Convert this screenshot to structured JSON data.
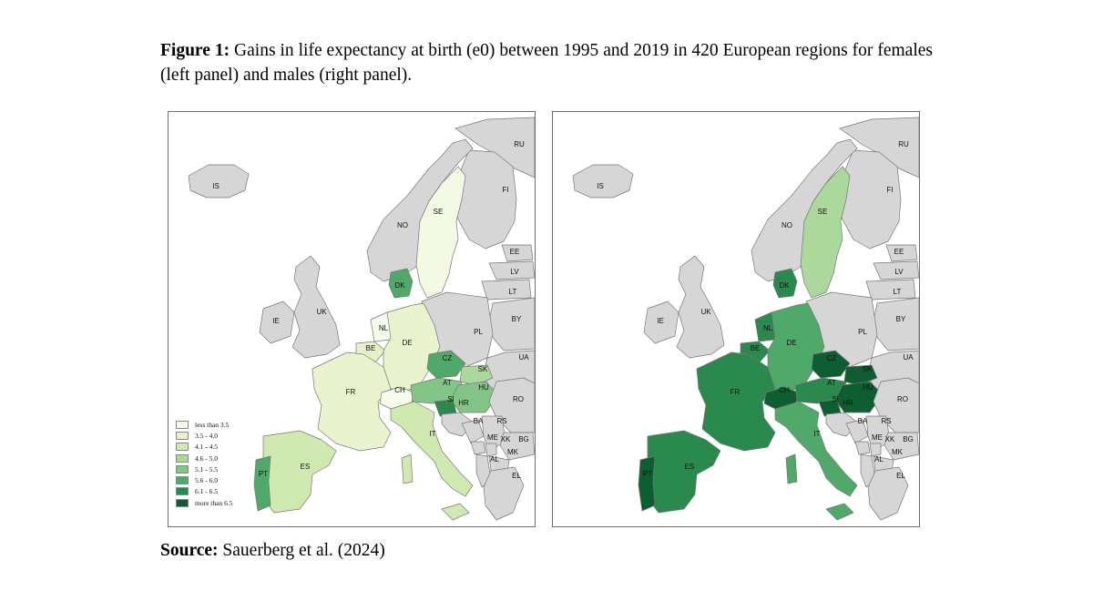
{
  "caption": {
    "label": "Figure 1:",
    "text": " Gains in life expectancy at birth (e0) between 1995 and 2019 in 420 European regions for females (left panel) and males (right panel)."
  },
  "source": {
    "label": "Source:",
    "text": " Sauerberg et al. (2024)"
  },
  "legend": [
    {
      "label": "less than 3.5",
      "color": "#f7fbea"
    },
    {
      "label": "3.5 - 4.0",
      "color": "#e6f2c6"
    },
    {
      "label": "4.1 - 4.5",
      "color": "#d0e9b0"
    },
    {
      "label": "4.6 - 5.0",
      "color": "#abd89b"
    },
    {
      "label": "5.1 - 5.5",
      "color": "#83c487"
    },
    {
      "label": "5.6 - 6.0",
      "color": "#4faa6a"
    },
    {
      "label": "6.1 - 6.5",
      "color": "#2a8a4e"
    },
    {
      "label": "more than 6.5",
      "color": "#0d5e31"
    }
  ],
  "countries": [
    "RU",
    "IS",
    "FI",
    "SE",
    "NO",
    "EE",
    "LV",
    "LT",
    "DK",
    "BY",
    "UK",
    "IE",
    "PL",
    "NL",
    "DE",
    "UA",
    "BE",
    "CZ",
    "SK",
    "FR",
    "AT",
    "HU",
    "CH",
    "SI",
    "HR",
    "RO",
    "BA",
    "RS",
    "IT",
    "ME",
    "XK",
    "BG",
    "MK",
    "AL",
    "ES",
    "PT",
    "EL"
  ],
  "panels": {
    "left": {
      "fills": {
        "SE": "#f4f9e4",
        "DK": "#4faa6a",
        "DE": "#e9f4cf",
        "NL": "#f7fbea",
        "BE": "#e6f2c6",
        "FR": "#e9f4cf",
        "CH": "#f7fbea",
        "AT": "#83c487",
        "CZ": "#4faa6a",
        "SK": "#abd89b",
        "HU": "#83c487",
        "SI": "#2a8a4e",
        "IT": "#d0e9b0",
        "ES": "#d0e9b0",
        "PT": "#4faa6a"
      }
    },
    "right": {
      "fills": {
        "SE": "#abd89b",
        "DK": "#2a8a4e",
        "DE": "#4faa6a",
        "NL": "#2a8a4e",
        "BE": "#2a8a4e",
        "FR": "#2a8a4e",
        "CH": "#0d5e31",
        "AT": "#2a8a4e",
        "CZ": "#0d5e31",
        "SK": "#0d5e31",
        "HU": "#0d5e31",
        "SI": "#0d5e31",
        "IT": "#4faa6a",
        "ES": "#2a8a4e",
        "PT": "#0d5e31"
      }
    }
  }
}
